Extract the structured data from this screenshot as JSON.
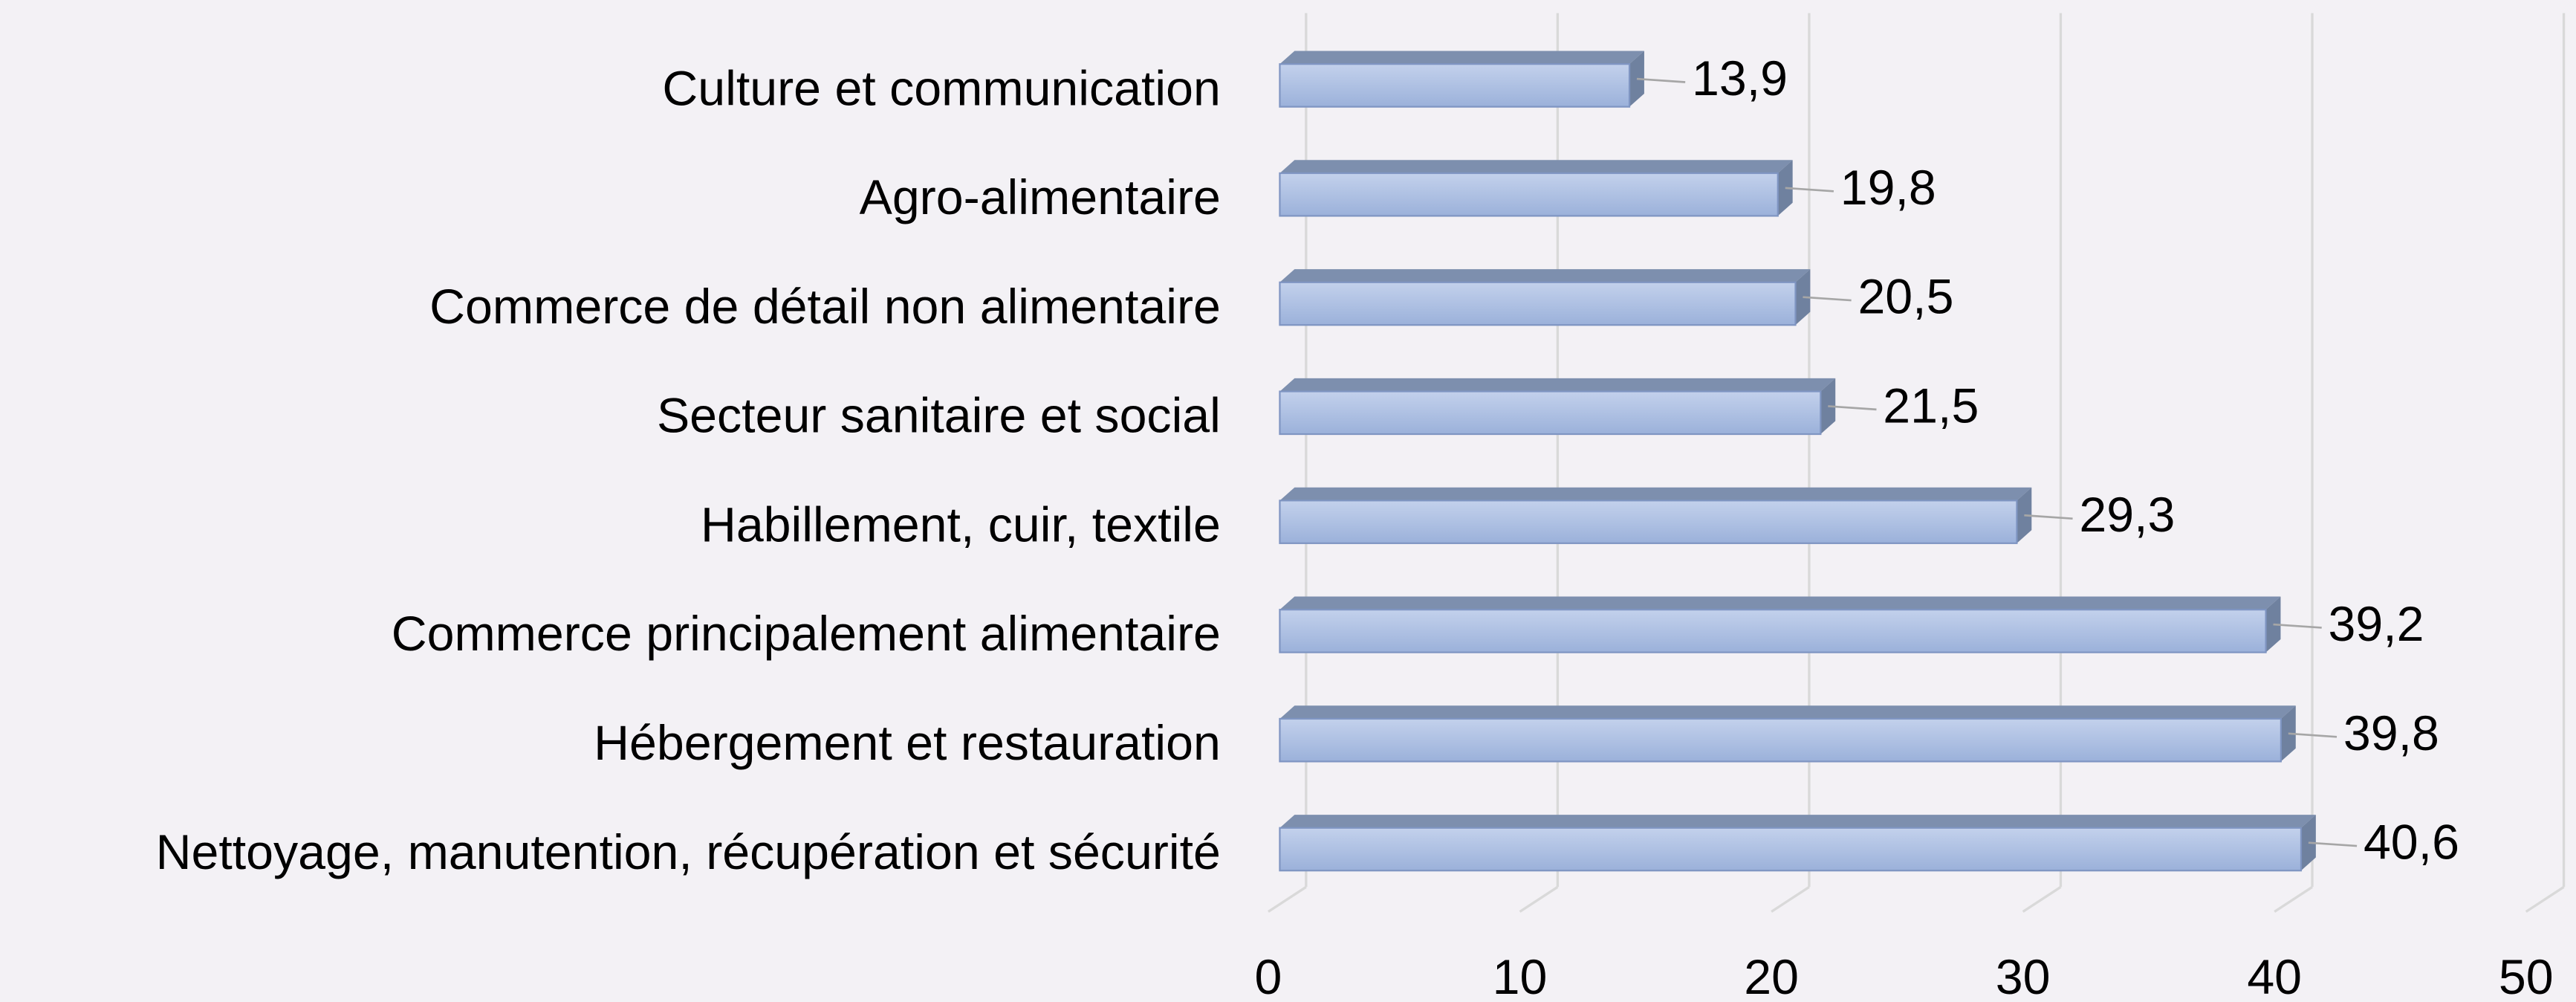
{
  "chart_data": {
    "type": "bar",
    "orientation": "horizontal",
    "three_d": true,
    "categories": [
      "Culture et communication",
      "Agro-alimentaire",
      "Commerce de détail non alimentaire",
      "Secteur sanitaire et social",
      "Habillement, cuir, textile",
      "Commerce principalement alimentaire",
      "Hébergement et restauration",
      "Nettoyage, manutention, récupération et sécurité"
    ],
    "values": [
      13.9,
      19.8,
      20.5,
      21.5,
      29.3,
      39.2,
      39.8,
      40.6
    ],
    "value_labels": [
      "13,9",
      "19,8",
      "20,5",
      "21,5",
      "29,3",
      "39,2",
      "39,8",
      "40,6"
    ],
    "color": "#9fb4dc",
    "xlim": [
      0,
      50
    ],
    "xticks": [
      0,
      10,
      20,
      30,
      40,
      50
    ],
    "grid": true
  }
}
